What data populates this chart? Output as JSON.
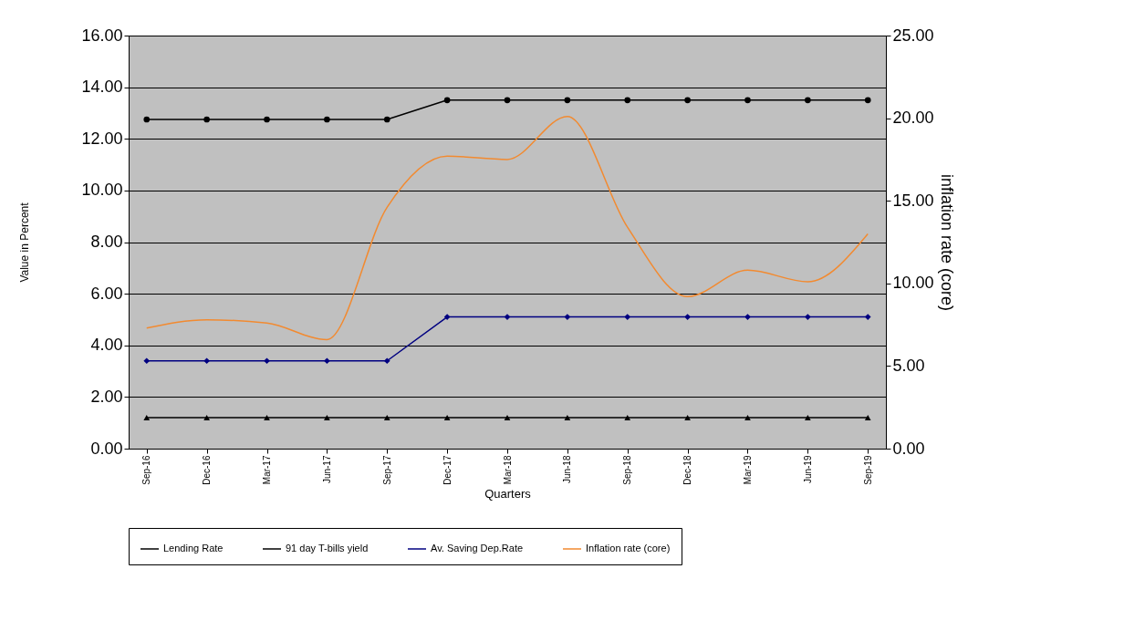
{
  "chart_data": {
    "type": "line",
    "categories": [
      "Sep-16",
      "Dec-16",
      "Mar-17",
      "Jun-17",
      "Sep-17",
      "Dec-17",
      "Mar-18",
      "Jun-18",
      "Sep-18",
      "Dec-18",
      "Mar-19",
      "Jun-19",
      "Sep-19"
    ],
    "series": [
      {
        "name": "Lending Rate",
        "color": "#000000",
        "marker": "circle",
        "values": [
          12.75,
          12.75,
          12.75,
          12.75,
          12.75,
          13.5,
          13.5,
          13.5,
          13.5,
          13.5,
          13.5,
          13.5,
          13.5
        ]
      },
      {
        "name": "91 day T-bills yield",
        "color": "#000000",
        "marker": "triangle",
        "values": [
          1.2,
          1.2,
          1.2,
          1.2,
          1.2,
          1.2,
          1.2,
          1.2,
          1.2,
          1.2,
          1.2,
          1.2,
          1.2
        ]
      },
      {
        "name": "Av. Saving Dep.Rate",
        "color": "#000080",
        "marker": "diamond",
        "values": [
          3.4,
          3.4,
          3.4,
          3.4,
          3.4,
          5.1,
          5.1,
          5.1,
          5.1,
          5.1,
          5.1,
          5.1,
          5.1
        ]
      },
      {
        "name": "Inflation rate (core)",
        "color": "#f28a30",
        "marker": "none",
        "axis": "y2",
        "values": [
          7.3,
          7.8,
          7.6,
          6.6,
          14.6,
          17.7,
          17.5,
          20.1,
          13.4,
          9.2,
          10.8,
          10.1,
          13.0
        ]
      }
    ],
    "xlabel": "Quarters",
    "ylabel": "Value in Percent",
    "y2label": "inflation  rate (core)",
    "ylim": [
      0,
      16
    ],
    "yticks": [
      {
        "value": 0,
        "label": "0.00"
      },
      {
        "value": 2,
        "label": "2.00"
      },
      {
        "value": 4,
        "label": "4.00"
      },
      {
        "value": 6,
        "label": "6.00"
      },
      {
        "value": 8,
        "label": "8.00"
      },
      {
        "value": 10,
        "label": "10.00"
      },
      {
        "value": 12,
        "label": "12.00"
      },
      {
        "value": 14,
        "label": "14.00"
      },
      {
        "value": 16,
        "label": "16.00"
      }
    ],
    "y2lim": [
      0,
      25
    ],
    "y2ticks": [
      {
        "value": 0,
        "label": "0.00"
      },
      {
        "value": 5,
        "label": "5.00"
      },
      {
        "value": 10,
        "label": "10.00"
      },
      {
        "value": 15,
        "label": "15.00"
      },
      {
        "value": 20,
        "label": "20.00"
      },
      {
        "value": 25,
        "label": "25.00"
      }
    ],
    "grid": "y",
    "legend": "bottom"
  }
}
